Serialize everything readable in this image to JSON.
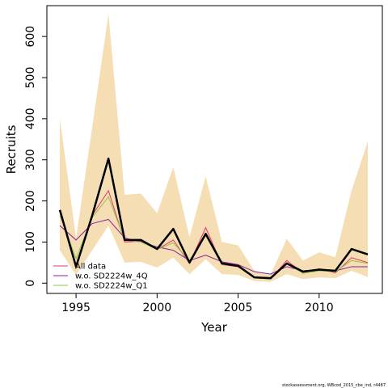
{
  "chart_data": {
    "type": "line",
    "xlabel": "Year",
    "ylabel": "Recruits",
    "xlim": [
      1993.2,
      2013.9
    ],
    "ylim": [
      -25,
      675
    ],
    "x_ticks": [
      1995,
      2000,
      2005,
      2010
    ],
    "y_ticks": [
      0,
      100,
      200,
      300,
      400,
      500,
      600
    ],
    "grid": false,
    "legend_position": "bottom-left",
    "x": [
      1994,
      1995,
      1996,
      1997,
      1998,
      1999,
      2000,
      2001,
      2002,
      2003,
      2004,
      2005,
      2006,
      2007,
      2008,
      2009,
      2010,
      2011,
      2012,
      2013
    ],
    "band": {
      "color": "#F5DEB3",
      "upper": [
        400,
        110,
        380,
        655,
        215,
        218,
        170,
        282,
        112,
        260,
        100,
        92,
        30,
        20,
        108,
        55,
        75,
        63,
        225,
        345
      ],
      "lower": [
        80,
        20,
        80,
        140,
        50,
        52,
        38,
        62,
        22,
        58,
        22,
        20,
        5,
        3,
        22,
        10,
        14,
        12,
        30,
        15
      ]
    },
    "main_series": {
      "color": "#000000",
      "values": [
        178,
        40,
        165,
        303,
        105,
        105,
        83,
        132,
        50,
        120,
        48,
        42,
        14,
        12,
        48,
        28,
        33,
        30,
        83,
        70
      ]
    },
    "series": [
      {
        "name": "All data",
        "color": "#E8336E",
        "values": [
          172,
          45,
          165,
          225,
          100,
          102,
          82,
          105,
          48,
          135,
          45,
          40,
          13,
          10,
          55,
          25,
          35,
          25,
          62,
          50
        ]
      },
      {
        "name": "w.o. SD2224w_4Q",
        "color": "#8B1FA0",
        "values": [
          140,
          105,
          145,
          155,
          110,
          100,
          88,
          80,
          55,
          68,
          52,
          45,
          28,
          22,
          40,
          30,
          33,
          30,
          40,
          40
        ]
      },
      {
        "name": "w.o. SD2224w_Q1",
        "color": "#8CC63F",
        "values": [
          165,
          60,
          160,
          210,
          105,
          100,
          82,
          98,
          55,
          115,
          45,
          42,
          14,
          10,
          48,
          24,
          30,
          28,
          55,
          48
        ]
      }
    ]
  },
  "footer": "stockassessment.org, WBcod_2015_cbe_ind, r4487"
}
